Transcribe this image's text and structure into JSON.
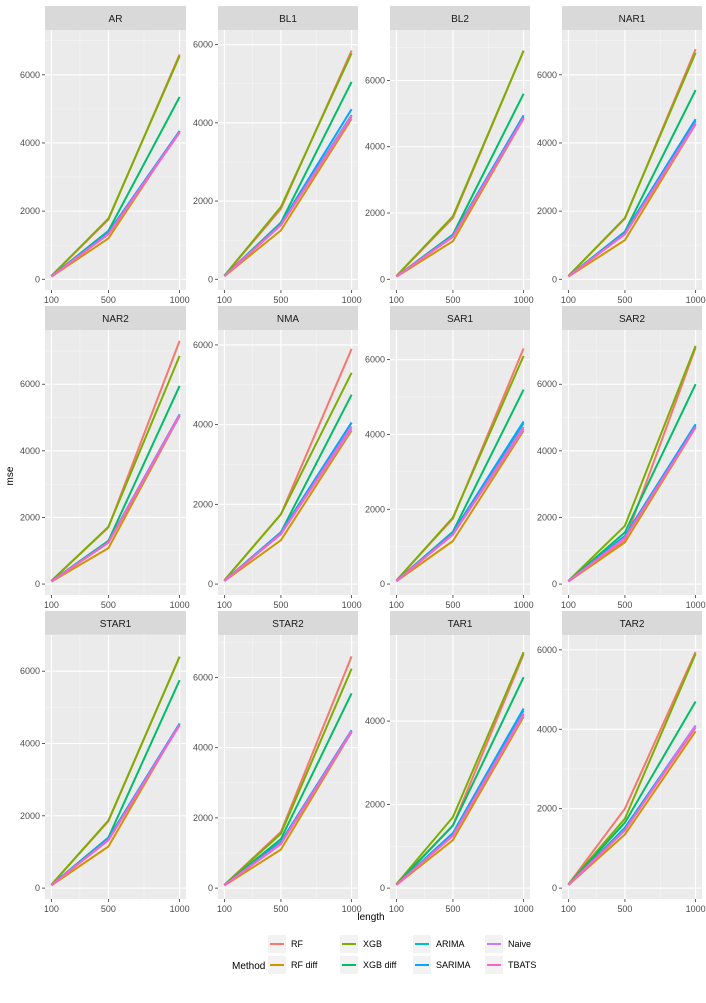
{
  "chart_data": {
    "type": "line",
    "xlabel": "length",
    "ylabel": "mse",
    "x": [
      100,
      500,
      1000
    ],
    "legend_title": "Method",
    "legend_placement": "bottom",
    "grid": true,
    "method_order": [
      "RF",
      "RF diff",
      "XGB",
      "XGB diff",
      "ARIMA",
      "SARIMA",
      "Naive",
      "TBATS"
    ],
    "colors": {
      "RF": "#F8766D",
      "RF diff": "#CD9600",
      "XGB": "#7CAE00",
      "XGB diff": "#00BE67",
      "ARIMA": "#00BFC4",
      "SARIMA": "#00A9FF",
      "Naive": "#C77CFF",
      "TBATS": "#FF61CC"
    },
    "panels": [
      {
        "title": "AR",
        "ylim": [
          0,
          7000
        ],
        "yticks": [
          0,
          2000,
          4000,
          6000
        ],
        "series": [
          {
            "name": "RF",
            "values": [
              95,
              1750,
              6600
            ]
          },
          {
            "name": "RF diff",
            "values": [
              75,
              1200,
              4350
            ]
          },
          {
            "name": "XGB",
            "values": [
              95,
              1780,
              6550
            ]
          },
          {
            "name": "XGB diff",
            "values": [
              85,
              1420,
              5350
            ]
          },
          {
            "name": "ARIMA",
            "values": [
              80,
              1350,
              4330
            ]
          },
          {
            "name": "SARIMA",
            "values": [
              80,
              1380,
              4350
            ]
          },
          {
            "name": "Naive",
            "values": [
              80,
              1320,
              4300
            ]
          },
          {
            "name": "TBATS",
            "values": [
              80,
              1330,
              4320
            ]
          }
        ]
      },
      {
        "title": "BL1",
        "ylim": [
          0,
          6100
        ],
        "yticks": [
          0,
          2000,
          4000,
          6000
        ],
        "series": [
          {
            "name": "RF",
            "values": [
              95,
              1800,
              5850
            ]
          },
          {
            "name": "RF diff",
            "values": [
              75,
              1250,
              4100
            ]
          },
          {
            "name": "XGB",
            "values": [
              95,
              1850,
              5780
            ]
          },
          {
            "name": "XGB diff",
            "values": [
              85,
              1450,
              5050
            ]
          },
          {
            "name": "ARIMA",
            "values": [
              80,
              1400,
              4200
            ]
          },
          {
            "name": "SARIMA",
            "values": [
              80,
              1420,
              4350
            ]
          },
          {
            "name": "Naive",
            "values": [
              80,
              1380,
              4150
            ]
          },
          {
            "name": "TBATS",
            "values": [
              80,
              1390,
              4180
            ]
          }
        ]
      },
      {
        "title": "BL2",
        "ylim": [
          0,
          7200
        ],
        "yticks": [
          0,
          2000,
          4000,
          6000
        ],
        "series": [
          {
            "name": "RF",
            "values": [
              95,
              1850,
              6900
            ]
          },
          {
            "name": "RF diff",
            "values": [
              75,
              1150,
              4850
            ]
          },
          {
            "name": "XGB",
            "values": [
              95,
              1900,
              6900
            ]
          },
          {
            "name": "XGB diff",
            "values": [
              85,
              1350,
              5600
            ]
          },
          {
            "name": "ARIMA",
            "values": [
              80,
              1300,
              4900
            ]
          },
          {
            "name": "SARIMA",
            "values": [
              80,
              1320,
              4950
            ]
          },
          {
            "name": "Naive",
            "values": [
              80,
              1280,
              4850
            ]
          },
          {
            "name": "TBATS",
            "values": [
              80,
              1290,
              4870
            ]
          }
        ]
      },
      {
        "title": "NAR1",
        "ylim": [
          0,
          7000
        ],
        "yticks": [
          0,
          2000,
          4000,
          6000
        ],
        "series": [
          {
            "name": "RF",
            "values": [
              95,
              1780,
              6750
            ]
          },
          {
            "name": "RF diff",
            "values": [
              75,
              1150,
              4550
            ]
          },
          {
            "name": "XGB",
            "values": [
              95,
              1800,
              6650
            ]
          },
          {
            "name": "XGB diff",
            "values": [
              85,
              1400,
              5550
            ]
          },
          {
            "name": "ARIMA",
            "values": [
              80,
              1350,
              4650
            ]
          },
          {
            "name": "SARIMA",
            "values": [
              80,
              1380,
              4700
            ]
          },
          {
            "name": "Naive",
            "values": [
              80,
              1320,
              4550
            ]
          },
          {
            "name": "TBATS",
            "values": [
              80,
              1330,
              4580
            ]
          }
        ]
      },
      {
        "title": "NAR2",
        "ylim": [
          0,
          7300
        ],
        "yticks": [
          0,
          2000,
          4000,
          6000
        ],
        "series": [
          {
            "name": "RF",
            "values": [
              95,
              1700,
              7300
            ]
          },
          {
            "name": "RF diff",
            "values": [
              75,
              1080,
              5050
            ]
          },
          {
            "name": "XGB",
            "values": [
              95,
              1720,
              6850
            ]
          },
          {
            "name": "XGB diff",
            "values": [
              85,
              1300,
              5950
            ]
          },
          {
            "name": "ARIMA",
            "values": [
              80,
              1250,
              5050
            ]
          },
          {
            "name": "SARIMA",
            "values": [
              80,
              1270,
              5100
            ]
          },
          {
            "name": "Naive",
            "values": [
              80,
              1240,
              5050
            ]
          },
          {
            "name": "TBATS",
            "values": [
              80,
              1250,
              5080
            ]
          }
        ]
      },
      {
        "title": "NMA",
        "ylim": [
          0,
          6100
        ],
        "yticks": [
          0,
          2000,
          4000,
          6000
        ],
        "series": [
          {
            "name": "RF",
            "values": [
              95,
              1750,
              5900
            ]
          },
          {
            "name": "RF diff",
            "values": [
              75,
              1100,
              3850
            ]
          },
          {
            "name": "XGB",
            "values": [
              95,
              1750,
              5300
            ]
          },
          {
            "name": "XGB diff",
            "values": [
              85,
              1300,
              4750
            ]
          },
          {
            "name": "ARIMA",
            "values": [
              80,
              1280,
              4050
            ]
          },
          {
            "name": "SARIMA",
            "values": [
              80,
              1300,
              4050
            ]
          },
          {
            "name": "Naive",
            "values": [
              80,
              1250,
              3900
            ]
          },
          {
            "name": "TBATS",
            "values": [
              80,
              1260,
              3950
            ]
          }
        ]
      },
      {
        "title": "SAR1",
        "ylim": [
          0,
          6500
        ],
        "yticks": [
          0,
          2000,
          4000,
          6000
        ],
        "series": [
          {
            "name": "RF",
            "values": [
              95,
              1750,
              6300
            ]
          },
          {
            "name": "RF diff",
            "values": [
              75,
              1150,
              4100
            ]
          },
          {
            "name": "XGB",
            "values": [
              95,
              1780,
              6100
            ]
          },
          {
            "name": "XGB diff",
            "values": [
              85,
              1400,
              5200
            ]
          },
          {
            "name": "ARIMA",
            "values": [
              80,
              1350,
              4300
            ]
          },
          {
            "name": "SARIMA",
            "values": [
              80,
              1380,
              4350
            ]
          },
          {
            "name": "Naive",
            "values": [
              80,
              1320,
              4150
            ]
          },
          {
            "name": "TBATS",
            "values": [
              80,
              1330,
              4200
            ]
          }
        ]
      },
      {
        "title": "SAR2",
        "ylim": [
          0,
          7300
        ],
        "yticks": [
          0,
          2000,
          4000,
          6000
        ],
        "series": [
          {
            "name": "RF",
            "values": [
              95,
              1300,
              7100
            ]
          },
          {
            "name": "RF diff",
            "values": [
              75,
              1250,
              4700
            ]
          },
          {
            "name": "XGB",
            "values": [
              95,
              1750,
              7150
            ]
          },
          {
            "name": "XGB diff",
            "values": [
              85,
              1550,
              6000
            ]
          },
          {
            "name": "ARIMA",
            "values": [
              80,
              1400,
              4750
            ]
          },
          {
            "name": "SARIMA",
            "values": [
              80,
              1450,
              4800
            ]
          },
          {
            "name": "Naive",
            "values": [
              80,
              1380,
              4700
            ]
          },
          {
            "name": "TBATS",
            "values": [
              80,
              1390,
              4720
            ]
          }
        ]
      },
      {
        "title": "STAR1",
        "ylim": [
          0,
          6700
        ],
        "yticks": [
          0,
          2000,
          4000,
          6000
        ],
        "series": [
          {
            "name": "RF",
            "values": [
              95,
              1850,
              6400
            ]
          },
          {
            "name": "RF diff",
            "values": [
              75,
              1150,
              4550
            ]
          },
          {
            "name": "XGB",
            "values": [
              95,
              1870,
              6400
            ]
          },
          {
            "name": "XGB diff",
            "values": [
              85,
              1400,
              5750
            ]
          },
          {
            "name": "ARIMA",
            "values": [
              80,
              1350,
              4550
            ]
          },
          {
            "name": "SARIMA",
            "values": [
              80,
              1380,
              4550
            ]
          },
          {
            "name": "Naive",
            "values": [
              80,
              1320,
              4500
            ]
          },
          {
            "name": "TBATS",
            "values": [
              80,
              1330,
              4520
            ]
          }
        ]
      },
      {
        "title": "STAR2",
        "ylim": [
          0,
          6900
        ],
        "yticks": [
          0,
          2000,
          4000,
          6000
        ],
        "series": [
          {
            "name": "RF",
            "values": [
              95,
              1600,
              6600
            ]
          },
          {
            "name": "RF diff",
            "values": [
              75,
              1100,
              4450
            ]
          },
          {
            "name": "XGB",
            "values": [
              95,
              1550,
              6250
            ]
          },
          {
            "name": "XGB diff",
            "values": [
              85,
              1400,
              5550
            ]
          },
          {
            "name": "ARIMA",
            "values": [
              80,
              1300,
              4450
            ]
          },
          {
            "name": "SARIMA",
            "values": [
              80,
              1320,
              4500
            ]
          },
          {
            "name": "Naive",
            "values": [
              80,
              1250,
              4450
            ]
          },
          {
            "name": "TBATS",
            "values": [
              80,
              1270,
              4470
            ]
          }
        ]
      },
      {
        "title": "TAR1",
        "ylim": [
          0,
          5800
        ],
        "yticks": [
          0,
          2000,
          4000
        ],
        "series": [
          {
            "name": "RF",
            "values": [
              95,
              1500,
              5600
            ]
          },
          {
            "name": "RF diff",
            "values": [
              75,
              1150,
              4100
            ]
          },
          {
            "name": "XGB",
            "values": [
              95,
              1700,
              5650
            ]
          },
          {
            "name": "XGB diff",
            "values": [
              85,
              1500,
              5050
            ]
          },
          {
            "name": "ARIMA",
            "values": [
              80,
              1300,
              4250
            ]
          },
          {
            "name": "SARIMA",
            "values": [
              80,
              1320,
              4300
            ]
          },
          {
            "name": "Naive",
            "values": [
              80,
              1250,
              4150
            ]
          },
          {
            "name": "TBATS",
            "values": [
              80,
              1260,
              4180
            ]
          }
        ]
      },
      {
        "title": "TAR2",
        "ylim": [
          0,
          6100
        ],
        "yticks": [
          0,
          2000,
          4000,
          6000
        ],
        "series": [
          {
            "name": "RF",
            "values": [
              95,
              2000,
              5950
            ]
          },
          {
            "name": "RF diff",
            "values": [
              75,
              1350,
              3950
            ]
          },
          {
            "name": "XGB",
            "values": [
              95,
              1750,
              5900
            ]
          },
          {
            "name": "XGB diff",
            "values": [
              85,
              1650,
              4700
            ]
          },
          {
            "name": "ARIMA",
            "values": [
              80,
              1500,
              4050
            ]
          },
          {
            "name": "SARIMA",
            "values": [
              80,
              1520,
              4100
            ]
          },
          {
            "name": "Naive",
            "values": [
              80,
              1450,
              4100
            ]
          },
          {
            "name": "TBATS",
            "values": [
              80,
              1460,
              4050
            ]
          }
        ]
      }
    ]
  }
}
